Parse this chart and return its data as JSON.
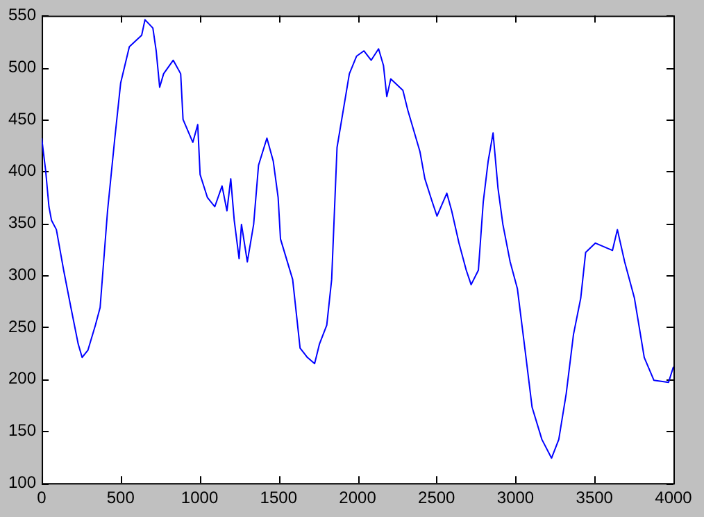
{
  "chart_data": {
    "type": "line",
    "x": [
      0,
      25,
      46,
      62,
      93,
      139,
      185,
      231,
      256,
      293,
      340,
      370,
      417,
      463,
      500,
      555,
      633,
      654,
      704,
      725,
      747,
      772,
      833,
      880,
      895,
      957,
      988,
      1003,
      1049,
      1096,
      1142,
      1173,
      1197,
      1219,
      1250,
      1265,
      1302,
      1342,
      1373,
      1426,
      1466,
      1497,
      1512,
      1589,
      1636,
      1682,
      1728,
      1759,
      1805,
      1836,
      1870,
      1948,
      1994,
      2040,
      2086,
      2133,
      2164,
      2185,
      2210,
      2287,
      2318,
      2395,
      2426,
      2472,
      2503,
      2565,
      2596,
      2642,
      2688,
      2719,
      2765,
      2796,
      2827,
      2858,
      2889,
      2920,
      2966,
      3012,
      3059,
      3105,
      3167,
      3228,
      3274,
      3321,
      3367,
      3413,
      3444,
      3506,
      3614,
      3645,
      3691,
      3753,
      3815,
      3876,
      3969,
      4000
    ],
    "series": [
      {
        "color": "#0000ff",
        "values": [
          432,
          401,
          366,
          353,
          344,
          305,
          269,
          234,
          221,
          228,
          252,
          269,
          362,
          432,
          485,
          520,
          531,
          546,
          538,
          516,
          481,
          494,
          507,
          494,
          450,
          428,
          445,
          397,
          375,
          366,
          386,
          362,
          393,
          353,
          316,
          349,
          313,
          349,
          406,
          432,
          410,
          375,
          335,
          296,
          230,
          221,
          215,
          234,
          252,
          296,
          423,
          494,
          511,
          516,
          507,
          518,
          502,
          472,
          489,
          478,
          459,
          419,
          393,
          371,
          357,
          379,
          362,
          331,
          305,
          291,
          305,
          371,
          410,
          437,
          384,
          349,
          313,
          287,
          230,
          173,
          142,
          124,
          142,
          186,
          243,
          278,
          322,
          331,
          324,
          344,
          313,
          278,
          221,
          199,
          197,
          212
        ]
      }
    ],
    "xlim": [
      0,
      4000
    ],
    "xticks": [
      0,
      500,
      1000,
      1500,
      2000,
      2500,
      3000,
      3500,
      4000
    ],
    "ylim": [
      100,
      550
    ],
    "yticks": [
      100,
      150,
      200,
      250,
      300,
      350,
      400,
      450,
      500,
      550
    ],
    "grid": false,
    "legend": false,
    "marker": "none",
    "line_style": "solid"
  }
}
